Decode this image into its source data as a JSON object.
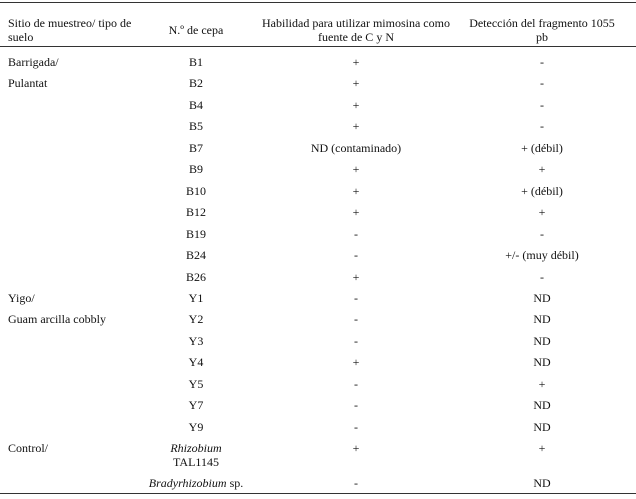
{
  "table": {
    "header": [
      "Sitio de muestreo/ tipo de suelo",
      "N.º de cepa",
      "Habilidad para utilizar mimosina como fuente de C y N",
      "Detección del fragmento 1055 pb"
    ],
    "rows": [
      {
        "site": "Barrigada/",
        "strain": "B1",
        "ability": "+",
        "detection": "-"
      },
      {
        "site": "Pulantat",
        "strain": "B2",
        "ability": "+",
        "detection": "-"
      },
      {
        "strain": "B4",
        "ability": "+",
        "detection": "-"
      },
      {
        "strain": "B5",
        "ability": "+",
        "detection": "-"
      },
      {
        "strain": "B7",
        "ability": "ND (contaminado)",
        "detection": "+ (débil)"
      },
      {
        "strain": "B9",
        "ability": "+",
        "detection": "+"
      },
      {
        "strain": "B10",
        "ability": "+",
        "detection": "+ (débil)"
      },
      {
        "strain": "B12",
        "ability": "+",
        "detection": "+"
      },
      {
        "strain": "B19",
        "ability": "-",
        "detection": "-"
      },
      {
        "strain": "B24",
        "ability": "-",
        "detection": "+/- (muy débil)"
      },
      {
        "strain": "B26",
        "ability": "+",
        "detection": "-"
      },
      {
        "site": "Yigo/",
        "strain": "Y1",
        "ability": "-",
        "detection": "ND"
      },
      {
        "site": "Guam arcilla cobbly",
        "strain": "Y2",
        "ability": "-",
        "detection": "ND"
      },
      {
        "strain": "Y3",
        "ability": "-",
        "detection": "ND"
      },
      {
        "strain": "Y4",
        "ability": "+",
        "detection": "ND"
      },
      {
        "strain": "Y5",
        "ability": "-",
        "detection": "+"
      },
      {
        "strain": "Y7",
        "ability": "-",
        "detection": "ND"
      },
      {
        "strain": "Y9",
        "ability": "-",
        "detection": "ND"
      },
      {
        "site": "Control/",
        "strain_italic": "Rhizobium",
        "strain": "TAL1145",
        "ability": "+",
        "detection": "+"
      },
      {
        "strain_italic": "Bradyrhizobium",
        "strain": "sp.",
        "ability": "-",
        "detection": "ND"
      }
    ]
  }
}
